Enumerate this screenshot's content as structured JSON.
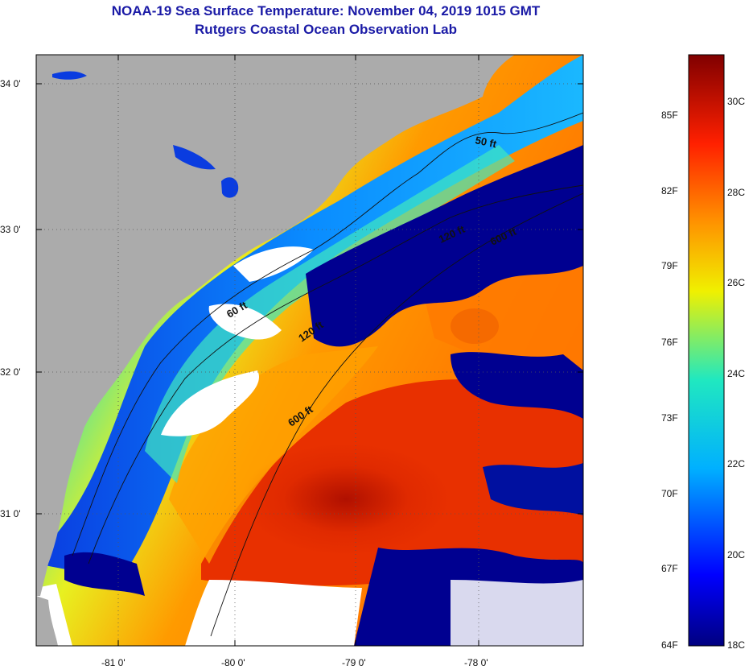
{
  "title": {
    "line1": "NOAA-19 Sea Surface Temperature:  November 04, 2019 1015 GMT",
    "line2": "Rutgers Coastal Ocean Observation Lab"
  },
  "map": {
    "lat_labels": [
      "34 0'",
      "33 0'",
      "32 0'",
      "31 0'"
    ],
    "lon_labels": [
      "-81 0'",
      "-80 0'",
      "-79 0'",
      "-78 0'"
    ],
    "contour_labels": [
      "50 ft",
      "120 ft",
      "600 ft",
      "60 ft",
      "120 ft",
      "600 ft"
    ],
    "colors": {
      "land": "#ababab",
      "cloud": "#ffffff",
      "cold": "#000080",
      "warm": "#d42000"
    }
  },
  "colorbar": {
    "fahrenheit_labels": [
      "85F",
      "82F",
      "79F",
      "76F",
      "73F",
      "70F",
      "67F",
      "64F"
    ],
    "celsius_labels": [
      "30C",
      "28C",
      "26C",
      "24C",
      "22C",
      "20C",
      "18C"
    ],
    "min_c": 18,
    "max_c": 31
  }
}
